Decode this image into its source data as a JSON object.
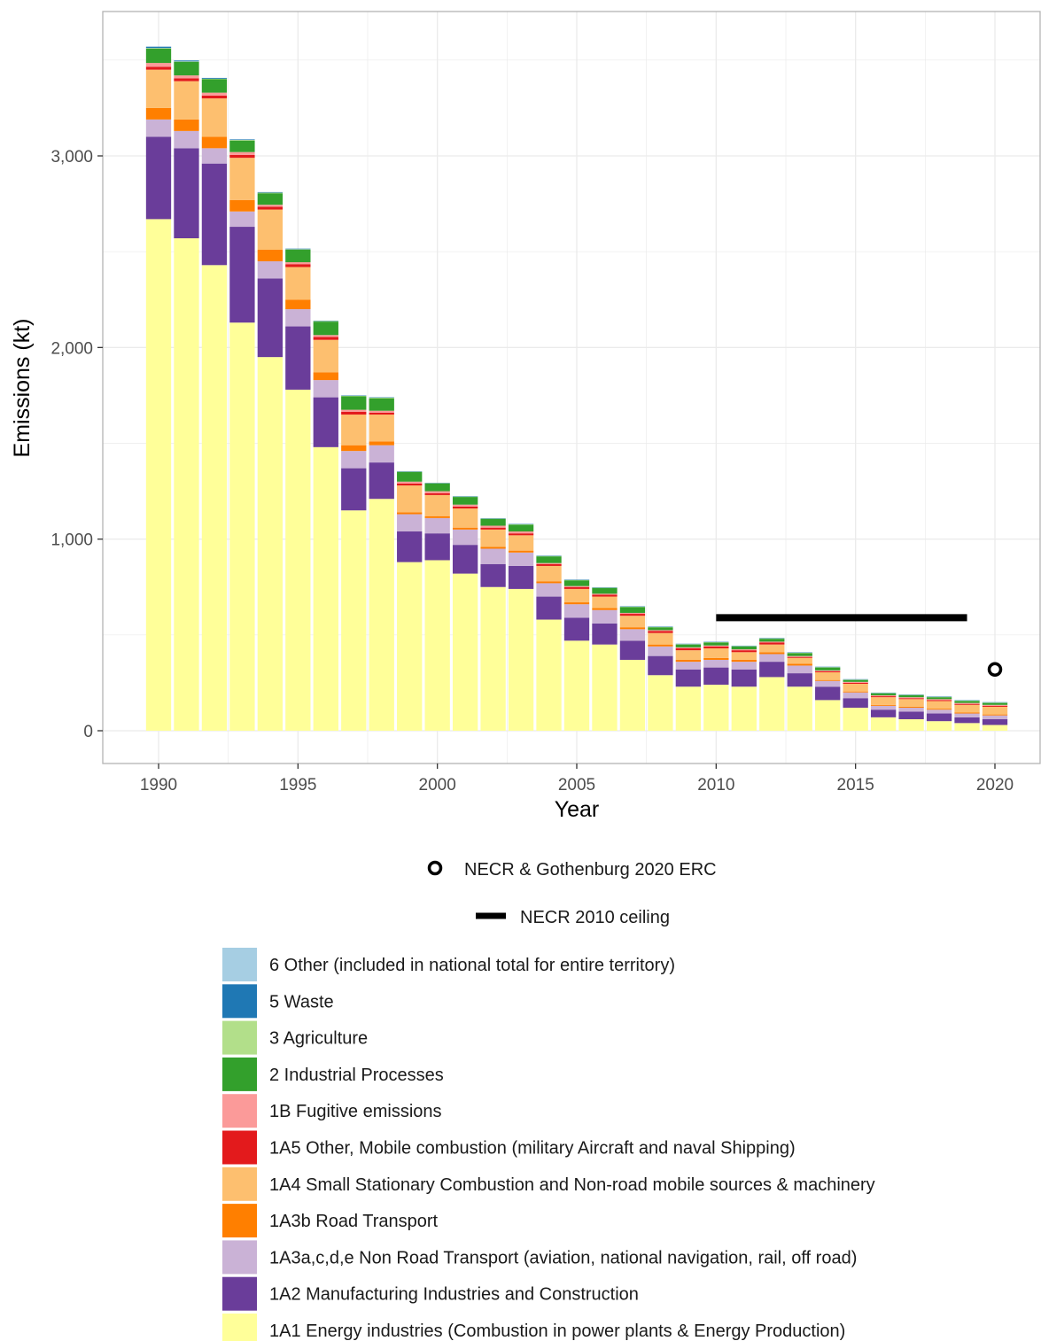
{
  "chart_data": {
    "type": "bar",
    "stacked": true,
    "xlabel": "Year",
    "ylabel": "Emissions (kt)",
    "ylim": [
      0,
      3700
    ],
    "xlim": [
      1989,
      2021
    ],
    "y_ticks": [
      0,
      1000,
      2000,
      3000
    ],
    "y_tick_labels": [
      "0",
      "1,000",
      "2,000",
      "3,000"
    ],
    "x_ticks": [
      1990,
      1995,
      2000,
      2005,
      2010,
      2015,
      2020
    ],
    "x_tick_labels": [
      "1990",
      "1995",
      "2000",
      "2005",
      "2010",
      "2015",
      "2020"
    ],
    "grid": true,
    "legend_position": "bottom",
    "categories": [
      1990,
      1991,
      1992,
      1993,
      1994,
      1995,
      1996,
      1997,
      1998,
      1999,
      2000,
      2001,
      2002,
      2003,
      2004,
      2005,
      2006,
      2007,
      2008,
      2009,
      2010,
      2011,
      2012,
      2013,
      2014,
      2015,
      2016,
      2017,
      2018,
      2019,
      2020
    ],
    "series": [
      {
        "name": "1A1 Energy industries (Combustion in power plants & Energy Production)",
        "color": "#FFFF99",
        "values": [
          2670,
          2570,
          2430,
          2130,
          1950,
          1780,
          1480,
          1150,
          1210,
          880,
          890,
          820,
          750,
          740,
          580,
          470,
          450,
          370,
          290,
          230,
          240,
          230,
          280,
          230,
          160,
          120,
          70,
          60,
          50,
          40,
          30
        ]
      },
      {
        "name": "1A2 Manufacturing Industries and Construction",
        "color": "#6A3D9A",
        "values": [
          430,
          470,
          530,
          500,
          410,
          330,
          260,
          220,
          190,
          160,
          140,
          150,
          120,
          120,
          120,
          120,
          110,
          100,
          100,
          90,
          90,
          90,
          80,
          70,
          70,
          50,
          40,
          40,
          40,
          30,
          30
        ]
      },
      {
        "name": "1A3a,c,d,e Non Road Transport (aviation, national navigation, rail, off road)",
        "color": "#CAB2D6",
        "values": [
          90,
          90,
          80,
          80,
          90,
          90,
          90,
          90,
          90,
          90,
          80,
          80,
          80,
          70,
          70,
          70,
          70,
          60,
          50,
          40,
          40,
          40,
          40,
          40,
          30,
          30,
          20,
          20,
          20,
          20,
          20
        ]
      },
      {
        "name": "1A3b Road Transport",
        "color": "#FF7F00",
        "values": [
          60,
          60,
          60,
          60,
          60,
          50,
          40,
          30,
          20,
          10,
          10,
          10,
          10,
          10,
          10,
          10,
          10,
          10,
          10,
          10,
          10,
          10,
          10,
          10,
          5,
          5,
          5,
          5,
          5,
          5,
          5
        ]
      },
      {
        "name": "1A4 Small Stationary Combustion and Non-road mobile sources & machinery",
        "color": "#FDBF6F",
        "values": [
          200,
          200,
          200,
          220,
          210,
          170,
          170,
          160,
          140,
          140,
          110,
          100,
          90,
          80,
          80,
          70,
          60,
          60,
          60,
          50,
          50,
          40,
          40,
          30,
          40,
          40,
          40,
          40,
          40,
          40,
          40
        ]
      },
      {
        "name": "1A5 Other, Mobile combustion (military Aircraft and naval Shipping)",
        "color": "#E31A1C",
        "values": [
          15,
          15,
          15,
          15,
          15,
          15,
          15,
          15,
          10,
          10,
          10,
          10,
          10,
          10,
          10,
          10,
          10,
          10,
          10,
          10,
          10,
          10,
          10,
          5,
          5,
          5,
          5,
          5,
          5,
          5,
          5
        ]
      },
      {
        "name": "1B Fugitive emissions",
        "color": "#FB9A99",
        "values": [
          20,
          15,
          15,
          15,
          10,
          10,
          10,
          10,
          10,
          10,
          10,
          10,
          10,
          10,
          5,
          5,
          5,
          5,
          5,
          5,
          5,
          5,
          5,
          5,
          5,
          5,
          5,
          5,
          5,
          5,
          5
        ]
      },
      {
        "name": "2 Industrial Processes",
        "color": "#33A02C",
        "values": [
          75,
          70,
          70,
          60,
          60,
          65,
          70,
          70,
          65,
          50,
          40,
          40,
          35,
          35,
          35,
          30,
          30,
          30,
          15,
          15,
          15,
          15,
          15,
          15,
          15,
          10,
          10,
          10,
          10,
          10,
          10
        ]
      },
      {
        "name": "3 Agriculture",
        "color": "#B2DF8A",
        "values": [
          3,
          3,
          3,
          3,
          3,
          3,
          3,
          3,
          3,
          2,
          2,
          2,
          2,
          2,
          2,
          2,
          2,
          2,
          2,
          2,
          2,
          2,
          2,
          2,
          2,
          2,
          2,
          2,
          2,
          2,
          2
        ]
      },
      {
        "name": "5 Waste",
        "color": "#1F78B4",
        "values": [
          7,
          5,
          4,
          3,
          3,
          3,
          2,
          2,
          2,
          2,
          2,
          2,
          2,
          2,
          2,
          2,
          2,
          2,
          2,
          2,
          2,
          2,
          2,
          2,
          2,
          2,
          2,
          2,
          2,
          2,
          2
        ]
      },
      {
        "name": "6 Other (included in national total for entire territory)",
        "color": "#A6CEE3",
        "values": [
          0,
          0,
          0,
          0,
          0,
          0,
          0,
          0,
          0,
          0,
          0,
          0,
          0,
          0,
          0,
          0,
          0,
          0,
          0,
          0,
          0,
          0,
          0,
          0,
          0,
          0,
          0,
          0,
          0,
          0,
          0
        ]
      }
    ],
    "overlays": [
      {
        "name": "NECR & Gothenburg 2020 ERC",
        "kind": "point",
        "x": 2020,
        "y": 320
      },
      {
        "name": "NECR 2010 ceiling",
        "kind": "segment",
        "x_start": 2010,
        "x_end": 2019,
        "y": 590
      }
    ],
    "legend_items": [
      {
        "label": "6 Other (included in national total for entire territory)",
        "color": "#A6CEE3"
      },
      {
        "label": "5 Waste",
        "color": "#1F78B4"
      },
      {
        "label": "3 Agriculture",
        "color": "#B2DF8A"
      },
      {
        "label": "2 Industrial Processes",
        "color": "#33A02C"
      },
      {
        "label": "1B Fugitive emissions",
        "color": "#FB9A99"
      },
      {
        "label": "1A5 Other, Mobile combustion (military Aircraft and naval Shipping)",
        "color": "#E31A1C"
      },
      {
        "label": "1A4 Small Stationary Combustion and Non-road mobile sources & machinery",
        "color": "#FDBF6F"
      },
      {
        "label": "1A3b Road Transport",
        "color": "#FF7F00"
      },
      {
        "label": "1A3a,c,d,e Non Road Transport (aviation, national navigation, rail, off road)",
        "color": "#CAB2D6"
      },
      {
        "label": "1A2 Manufacturing Industries and Construction",
        "color": "#6A3D9A"
      },
      {
        "label": "1A1 Energy industries (Combustion in power plants & Energy Production)",
        "color": "#FFFF99"
      }
    ]
  }
}
